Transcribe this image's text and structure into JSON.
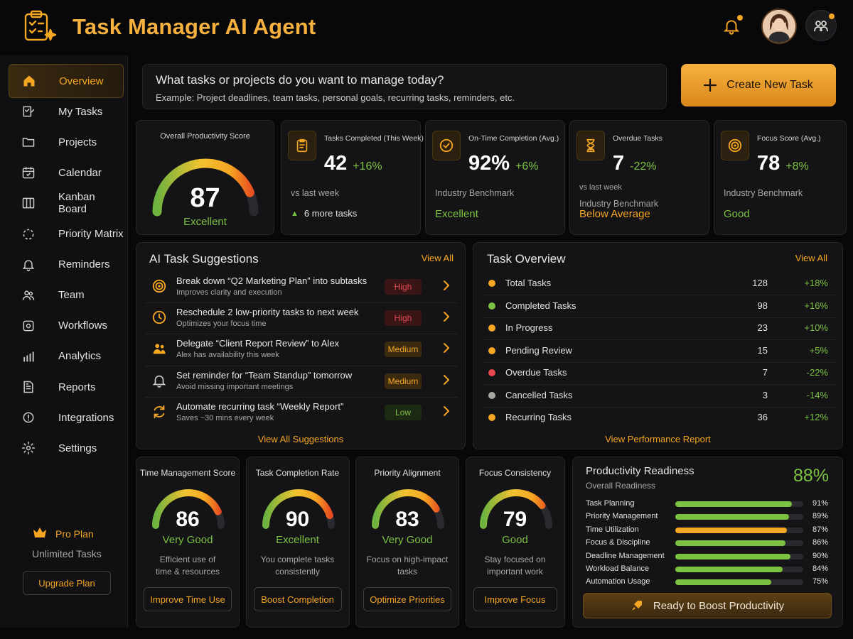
{
  "header": {
    "title": "Task Manager AI Agent",
    "logo_icon": "clipboard-sparkle-icon",
    "notification_icon": "bell-icon",
    "avatar_icon": "user-avatar",
    "team_icon": "team-icon"
  },
  "sidebar": {
    "items": [
      {
        "label": "Overview",
        "icon": "home-icon",
        "active": true
      },
      {
        "label": "My Tasks",
        "icon": "checklist-icon"
      },
      {
        "label": "Projects",
        "icon": "folder-icon"
      },
      {
        "label": "Calendar",
        "icon": "calendar-icon"
      },
      {
        "label": "Kanban Board",
        "icon": "kanban-icon"
      },
      {
        "label": "Priority Matrix",
        "icon": "matrix-icon"
      },
      {
        "label": "Reminders",
        "icon": "bell-icon"
      },
      {
        "label": "Team",
        "icon": "team-icon"
      },
      {
        "label": "Workflows",
        "icon": "workflow-icon"
      },
      {
        "label": "Analytics",
        "icon": "analytics-icon"
      },
      {
        "label": "Reports",
        "icon": "report-icon"
      },
      {
        "label": "Integrations",
        "icon": "integrations-icon"
      },
      {
        "label": "Settings",
        "icon": "gear-icon"
      }
    ],
    "plan": {
      "name": "Pro Plan",
      "detail": "Unlimited Tasks",
      "upgrade_label": "Upgrade Plan"
    }
  },
  "prompt": {
    "question": "What tasks or projects do you want to manage today?",
    "example": "Example: Project deadlines, team tasks, personal goals, recurring tasks, reminders, etc.",
    "create_label": "Create New Task"
  },
  "productivity": {
    "title": "Overall Productivity Score",
    "score": "87",
    "rating": "Excellent",
    "level": 0.87
  },
  "kpis": [
    {
      "title": "Tasks Completed (This Week)",
      "value": "42",
      "delta": "+16%",
      "line1": "vs last week",
      "line2": "",
      "footer": "6 more tasks",
      "icon": "clipboard-icon"
    },
    {
      "title": "On-Time Completion (Avg.)",
      "value": "92%",
      "delta": "+6%",
      "line1": "",
      "line2": "Industry Benchmark",
      "footer": "Excellent",
      "icon": "check-circle-icon"
    },
    {
      "title": "Overdue Tasks",
      "value": "7",
      "delta": "-22%",
      "line1": "vs last week",
      "line2": "Industry Benchmark",
      "footer": "Below Average",
      "icon": "hourglass-icon"
    },
    {
      "title": "Focus Score (Avg.)",
      "value": "78",
      "delta": "+8%",
      "line1": "",
      "line2": "Industry Benchmark",
      "footer": "Good",
      "icon": "target-icon"
    }
  ],
  "suggestions": {
    "title": "AI Task Suggestions",
    "view_all": "View All",
    "footer": "View All Suggestions",
    "items": [
      {
        "title": "Break down “Q2 Marketing Plan” into subtasks",
        "sub": "Improves clarity and execution",
        "priority": "High",
        "icon": "target-icon"
      },
      {
        "title": "Reschedule 2 low-priority tasks to next week",
        "sub": "Optimizes your focus time",
        "priority": "High",
        "icon": "clock-icon"
      },
      {
        "title": "Delegate “Client Report Review” to Alex",
        "sub": "Alex has availability this week",
        "priority": "Medium",
        "icon": "people-icon"
      },
      {
        "title": "Set reminder for “Team Standup” tomorrow",
        "sub": "Avoid missing important meetings",
        "priority": "Medium",
        "icon": "bell-icon"
      },
      {
        "title": "Automate recurring task “Weekly Report”",
        "sub": "Saves ~30 mins every week",
        "priority": "Low",
        "icon": "refresh-icon"
      }
    ]
  },
  "overview": {
    "title": "Task Overview",
    "view_all": "View All",
    "footer": "View Performance Report",
    "rows": [
      {
        "label": "Total Tasks",
        "count": "128",
        "change": "+18%",
        "color": "#f5a623"
      },
      {
        "label": "Completed Tasks",
        "count": "98",
        "change": "+16%",
        "color": "#7cc242"
      },
      {
        "label": "In Progress",
        "count": "23",
        "change": "+10%",
        "color": "#f5a623"
      },
      {
        "label": "Pending Review",
        "count": "15",
        "change": "+5%",
        "color": "#f5a623"
      },
      {
        "label": "Overdue Tasks",
        "count": "7",
        "change": "-22%",
        "color": "#e5484d"
      },
      {
        "label": "Cancelled Tasks",
        "count": "3",
        "change": "-14%",
        "color": "#a9a7a2"
      },
      {
        "label": "Recurring Tasks",
        "count": "36",
        "change": "+12%",
        "color": "#f5a623"
      }
    ]
  },
  "scores": [
    {
      "title": "Time Management Score",
      "value": "86",
      "rating": "Very Good",
      "desc1": "Efficient use of",
      "desc2": "time & resources",
      "action": "Improve Time Use",
      "level": 0.86
    },
    {
      "title": "Task Completion Rate",
      "value": "90",
      "rating": "Excellent",
      "desc1": "You complete tasks",
      "desc2": "consistently",
      "action": "Boost Completion",
      "level": 0.9
    },
    {
      "title": "Priority Alignment",
      "value": "83",
      "rating": "Very Good",
      "desc1": "Focus on high-impact",
      "desc2": "tasks",
      "action": "Optimize Priorities",
      "level": 0.83
    },
    {
      "title": "Focus Consistency",
      "value": "79",
      "rating": "Good",
      "desc1": "Stay focused on",
      "desc2": "important work",
      "action": "Improve Focus",
      "level": 0.79
    }
  ],
  "readiness": {
    "title": "Productivity Readiness",
    "subtitle": "Overall Readiness",
    "value": "88%",
    "cta": "Ready to Boost Productivity",
    "bars": [
      {
        "label": "Task Planning",
        "pct": "91%",
        "level": 0.91,
        "color": "#7cc242"
      },
      {
        "label": "Priority Management",
        "pct": "89%",
        "level": 0.89,
        "color": "#7cc242"
      },
      {
        "label": "Time Utilization",
        "pct": "87%",
        "level": 0.87,
        "color": "#f5a623"
      },
      {
        "label": "Focus & Discipline",
        "pct": "86%",
        "level": 0.86,
        "color": "#7cc242"
      },
      {
        "label": "Deadline Management",
        "pct": "90%",
        "level": 0.9,
        "color": "#7cc242"
      },
      {
        "label": "Workload Balance",
        "pct": "84%",
        "level": 0.84,
        "color": "#7cc242"
      },
      {
        "label": "Automation Usage",
        "pct": "75%",
        "level": 0.75,
        "color": "#7cc242"
      }
    ]
  }
}
